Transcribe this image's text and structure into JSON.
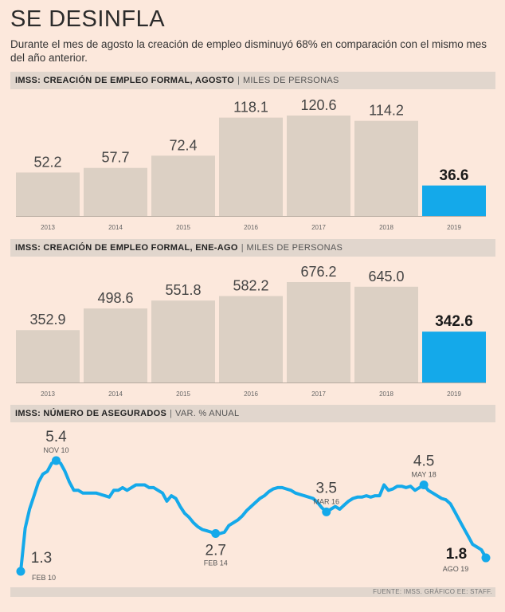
{
  "title": "SE DESINFLA",
  "subtitle": "Durante el mes de agosto la creación de empleo disminuyó 68% en comparación con el mismo mes del año anterior.",
  "colors": {
    "bar": "#dcd0c4",
    "highlight": "#14a9ea",
    "line": "#14a9ea"
  },
  "chart_data": [
    {
      "type": "bar",
      "title": "IMSS: CREACIÓN DE EMPLEO FORMAL, AGOSTO",
      "unit": "MILES DE PERSONAS",
      "categories": [
        "2013",
        "2014",
        "2015",
        "2016",
        "2017",
        "2018",
        "2019"
      ],
      "values": [
        52.2,
        57.7,
        72.4,
        118.1,
        120.6,
        114.2,
        36.6
      ],
      "labels": [
        "52.2",
        "57.7",
        "72.4",
        "118.1",
        "120.6",
        "114.2",
        "36.6"
      ],
      "highlight_index": 6
    },
    {
      "type": "bar",
      "title": "IMSS: CREACIÓN DE EMPLEO FORMAL, ENE-AGO",
      "unit": "MILES DE PERSONAS",
      "categories": [
        "2013",
        "2014",
        "2015",
        "2016",
        "2017",
        "2018",
        "2019"
      ],
      "values": [
        352.9,
        498.6,
        551.8,
        582.2,
        676.2,
        645.0,
        342.6
      ],
      "labels": [
        "352.9",
        "498.6",
        "551.8",
        "582.2",
        "676.2",
        "645.0",
        "342.6"
      ],
      "highlight_index": 6
    },
    {
      "type": "line",
      "title": "IMSS: NÚMERO DE ASEGURADOS",
      "unit": "VAR. % ANUAL",
      "x_range": [
        "FEB 10",
        "AGO 19"
      ],
      "ylim": [
        1.3,
        5.4
      ],
      "values": [
        1.3,
        2.9,
        3.6,
        4.1,
        4.6,
        4.9,
        5.0,
        5.3,
        5.4,
        5.3,
        5.0,
        4.6,
        4.3,
        4.3,
        4.2,
        4.2,
        4.2,
        4.2,
        4.15,
        4.1,
        4.05,
        4.3,
        4.3,
        4.4,
        4.3,
        4.4,
        4.5,
        4.5,
        4.5,
        4.4,
        4.4,
        4.3,
        4.2,
        3.9,
        4.1,
        4.0,
        3.7,
        3.45,
        3.3,
        3.1,
        2.95,
        2.85,
        2.8,
        2.75,
        2.7,
        2.7,
        2.75,
        3.0,
        3.1,
        3.2,
        3.35,
        3.55,
        3.7,
        3.85,
        4.0,
        4.1,
        4.25,
        4.35,
        4.4,
        4.4,
        4.35,
        4.3,
        4.2,
        4.15,
        4.1,
        4.05,
        4.0,
        3.85,
        3.65,
        3.5,
        3.6,
        3.7,
        3.6,
        3.75,
        3.9,
        4.0,
        4.05,
        4.05,
        4.1,
        4.05,
        4.1,
        4.1,
        4.5,
        4.3,
        4.35,
        4.45,
        4.45,
        4.4,
        4.45,
        4.3,
        4.4,
        4.5,
        4.3,
        4.2,
        4.1,
        4.0,
        3.95,
        3.8,
        3.5,
        3.2,
        2.9,
        2.6,
        2.3,
        2.2,
        2.1,
        1.8
      ],
      "annotations": [
        {
          "index": 0,
          "value": "1.3",
          "label": "FEB 10",
          "bold": false
        },
        {
          "index": 8,
          "value": "5.4",
          "label": "NOV 10",
          "bold": false
        },
        {
          "index": 44,
          "value": "2.7",
          "label": "FEB 14",
          "bold": false
        },
        {
          "index": 69,
          "value": "3.5",
          "label": "MAR 16",
          "bold": false
        },
        {
          "index": 91,
          "value": "4.5",
          "label": "MAY 18",
          "bold": false
        },
        {
          "index": 105,
          "value": "1.8",
          "label": "AGO 19",
          "bold": true
        }
      ]
    }
  ],
  "footer": "FUENTE: IMSS. GRÁFICO EE: STAFF."
}
